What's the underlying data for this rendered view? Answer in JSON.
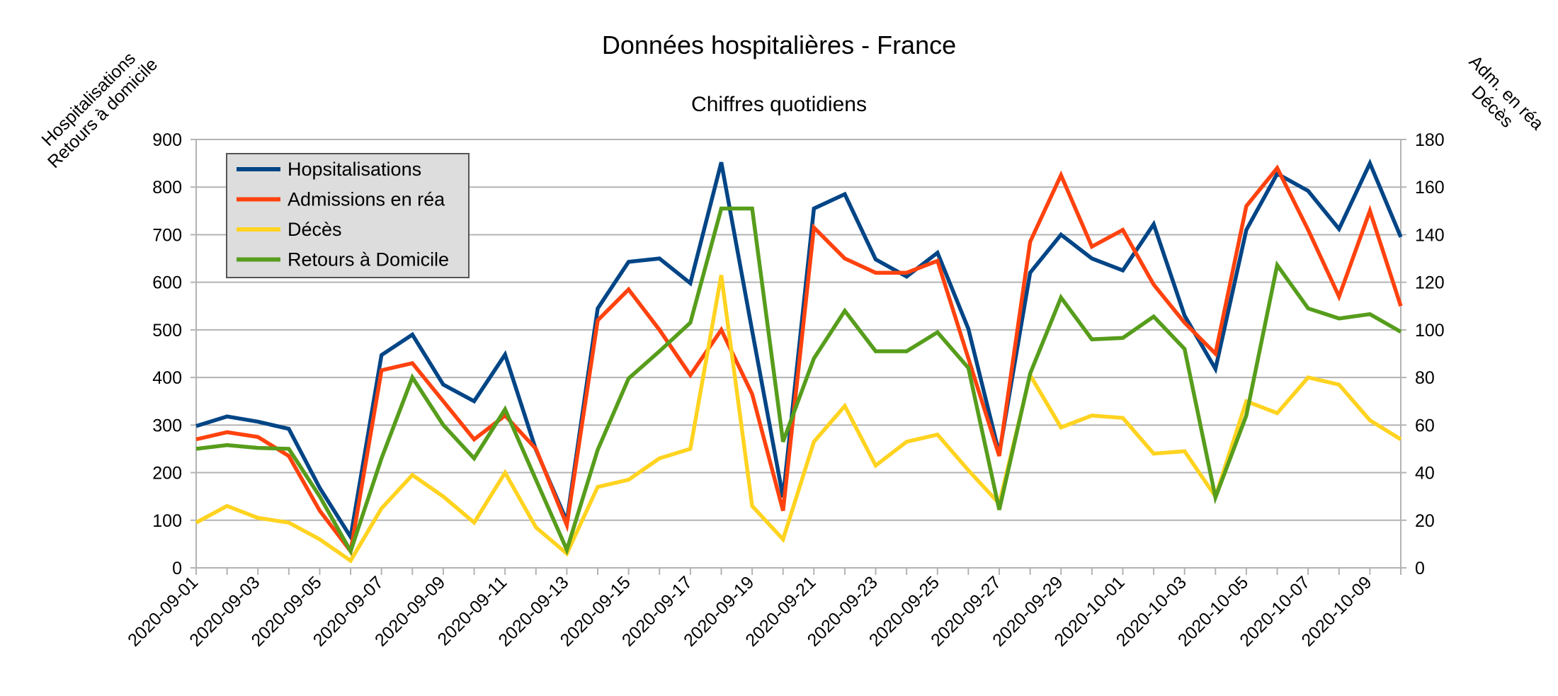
{
  "chart_data": {
    "type": "line",
    "title": "Données hospitalières - France",
    "subtitle": "Chiffres quotidiens",
    "y_left_label": [
      "Hospitalisations",
      "Retours à domicile"
    ],
    "y_right_label": [
      "Adm. en réa",
      "Décès"
    ],
    "y_left_lim": [
      0,
      900
    ],
    "y_right_lim": [
      0,
      180
    ],
    "y_left_ticks": [
      "0",
      "100",
      "200",
      "300",
      "400",
      "500",
      "600",
      "700",
      "800",
      "900"
    ],
    "y_right_ticks": [
      "0",
      "20",
      "40",
      "60",
      "80",
      "100",
      "120",
      "140",
      "160",
      "180"
    ],
    "grid": true,
    "legend_position": "top-left",
    "x": [
      "2020-09-01",
      "2020-09-02",
      "2020-09-03",
      "2020-09-04",
      "2020-09-05",
      "2020-09-06",
      "2020-09-07",
      "2020-09-08",
      "2020-09-09",
      "2020-09-10",
      "2020-09-11",
      "2020-09-12",
      "2020-09-13",
      "2020-09-14",
      "2020-09-15",
      "2020-09-16",
      "2020-09-17",
      "2020-09-18",
      "2020-09-19",
      "2020-09-20",
      "2020-09-21",
      "2020-09-22",
      "2020-09-23",
      "2020-09-24",
      "2020-09-25",
      "2020-09-26",
      "2020-09-27",
      "2020-09-28",
      "2020-09-29",
      "2020-09-30",
      "2020-10-01",
      "2020-10-02",
      "2020-10-03",
      "2020-10-04",
      "2020-10-05",
      "2020-10-06",
      "2020-10-07",
      "2020-10-08",
      "2020-10-09",
      "2020-10-10"
    ],
    "x_tick_labels": [
      "2020-09-01",
      "2020-09-03",
      "2020-09-05",
      "2020-09-07",
      "2020-09-09",
      "2020-09-11",
      "2020-09-13",
      "2020-09-15",
      "2020-09-17",
      "2020-09-19",
      "2020-09-21",
      "2020-09-23",
      "2020-09-25",
      "2020-09-27",
      "2020-09-29",
      "2020-10-01",
      "2020-10-03",
      "2020-10-05",
      "2020-10-07",
      "2020-10-09"
    ],
    "series": [
      {
        "name": "Hopsitalisations",
        "axis": "left",
        "color": "#004586",
        "values": [
          298,
          318,
          307,
          292,
          168,
          65,
          447,
          490,
          385,
          350,
          448,
          248,
          98,
          545,
          643,
          650,
          598,
          852,
          498,
          148,
          755,
          785,
          648,
          612,
          662,
          502,
          240,
          620,
          700,
          650,
          625,
          722,
          530,
          418,
          710,
          828,
          792,
          712,
          850,
          695
        ]
      },
      {
        "name": "Admissions en réa",
        "axis": "right",
        "color": "#ff420e",
        "values": [
          54,
          57,
          55,
          47,
          24,
          7,
          83,
          86,
          70,
          54,
          64,
          50,
          18,
          104,
          117,
          100,
          81,
          100,
          73,
          24,
          143,
          130,
          124,
          124,
          129,
          88,
          47,
          137,
          165,
          135,
          142,
          119,
          103,
          90,
          152,
          168,
          142,
          114,
          150,
          110
        ]
      },
      {
        "name": "Décès",
        "axis": "right",
        "color": "#ffd320",
        "values": [
          19,
          26,
          21,
          19,
          12,
          3,
          25,
          39,
          30,
          19,
          40,
          17,
          6,
          34,
          37,
          46,
          50,
          123,
          26,
          12,
          53,
          68,
          43,
          53,
          56,
          41,
          27,
          81,
          59,
          64,
          63,
          48,
          49,
          30,
          70,
          65,
          80,
          77,
          62,
          54
        ]
      },
      {
        "name": "Retours à Domicile",
        "axis": "left",
        "color": "#579d1c",
        "values": [
          250,
          258,
          252,
          250,
          150,
          35,
          230,
          400,
          300,
          230,
          333,
          185,
          38,
          248,
          398,
          455,
          515,
          755,
          755,
          265,
          440,
          540,
          455,
          455,
          495,
          420,
          122,
          408,
          568,
          480,
          483,
          528,
          460,
          148,
          320,
          636,
          545,
          524,
          533,
          496
        ]
      }
    ]
  }
}
